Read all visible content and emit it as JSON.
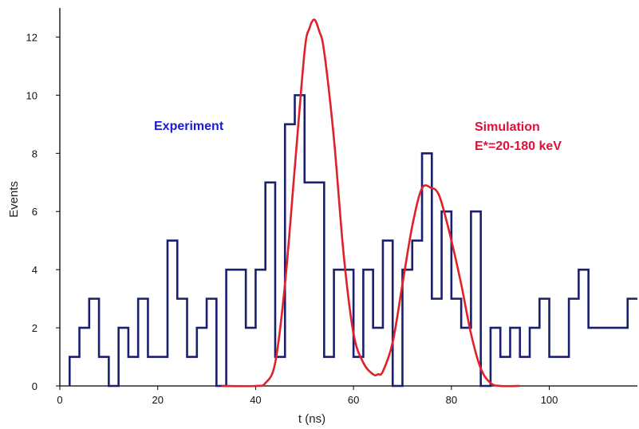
{
  "chart_data": {
    "type": "line",
    "title": "",
    "xlabel": "t (ns)",
    "ylabel": "Events",
    "xlim": [
      0,
      118
    ],
    "ylim": [
      0,
      13
    ],
    "x_ticks": [
      0,
      20,
      40,
      60,
      80,
      100
    ],
    "y_ticks": [
      0,
      2,
      4,
      6,
      8,
      10,
      12
    ],
    "grid": false,
    "legend": "none",
    "annotations": [
      {
        "text": "Experiment",
        "color": "#1b1bd6"
      },
      {
        "text": "Simulation",
        "color": "#e0103a"
      },
      {
        "text": "E*=20-180 keV",
        "color": "#e0103a"
      }
    ],
    "series": [
      {
        "style": "step",
        "color": "#1a1f6e",
        "bin_width": 2,
        "x": [
          3,
          5,
          7,
          9,
          11,
          13,
          15,
          17,
          19,
          21,
          23,
          25,
          27,
          29,
          31,
          33,
          35,
          37,
          39,
          41,
          43,
          45,
          47,
          49,
          51,
          53,
          55,
          57,
          59,
          61,
          63,
          65,
          67,
          69,
          71,
          73,
          75,
          77,
          79,
          81,
          83,
          85,
          87,
          89,
          91,
          93,
          95,
          97,
          99,
          101,
          103,
          105,
          107,
          109,
          111,
          113,
          115,
          117
        ],
        "values": [
          1,
          2,
          3,
          1,
          0,
          2,
          1,
          3,
          1,
          1,
          5,
          3,
          1,
          2,
          3,
          0,
          4,
          4,
          2,
          4,
          7,
          1,
          9,
          10,
          7,
          7,
          1,
          4,
          4,
          1,
          4,
          2,
          5,
          0,
          4,
          5,
          8,
          3,
          6,
          3,
          2,
          6,
          0,
          2,
          1,
          2,
          1,
          2,
          3,
          1,
          1,
          3,
          4,
          2,
          2,
          2,
          2,
          3
        ]
      },
      {
        "style": "smooth",
        "color": "#e0202a",
        "x": [
          33,
          40,
          42,
          44,
          46,
          48,
          50,
          51,
          52,
          53,
          54,
          56,
          58,
          60,
          62,
          64,
          65,
          66,
          68,
          70,
          72,
          74,
          76,
          77,
          78,
          80,
          82,
          84,
          86,
          88,
          90,
          94
        ],
        "values": [
          0,
          0,
          0.1,
          0.8,
          3.5,
          7.5,
          11.5,
          12.3,
          12.6,
          12.2,
          11.5,
          8.5,
          4.5,
          1.8,
          0.8,
          0.4,
          0.4,
          0.5,
          1.5,
          3.5,
          5.5,
          6.8,
          6.8,
          6.7,
          6.3,
          5.0,
          3.5,
          1.8,
          0.6,
          0.1,
          0,
          0
        ]
      }
    ]
  }
}
